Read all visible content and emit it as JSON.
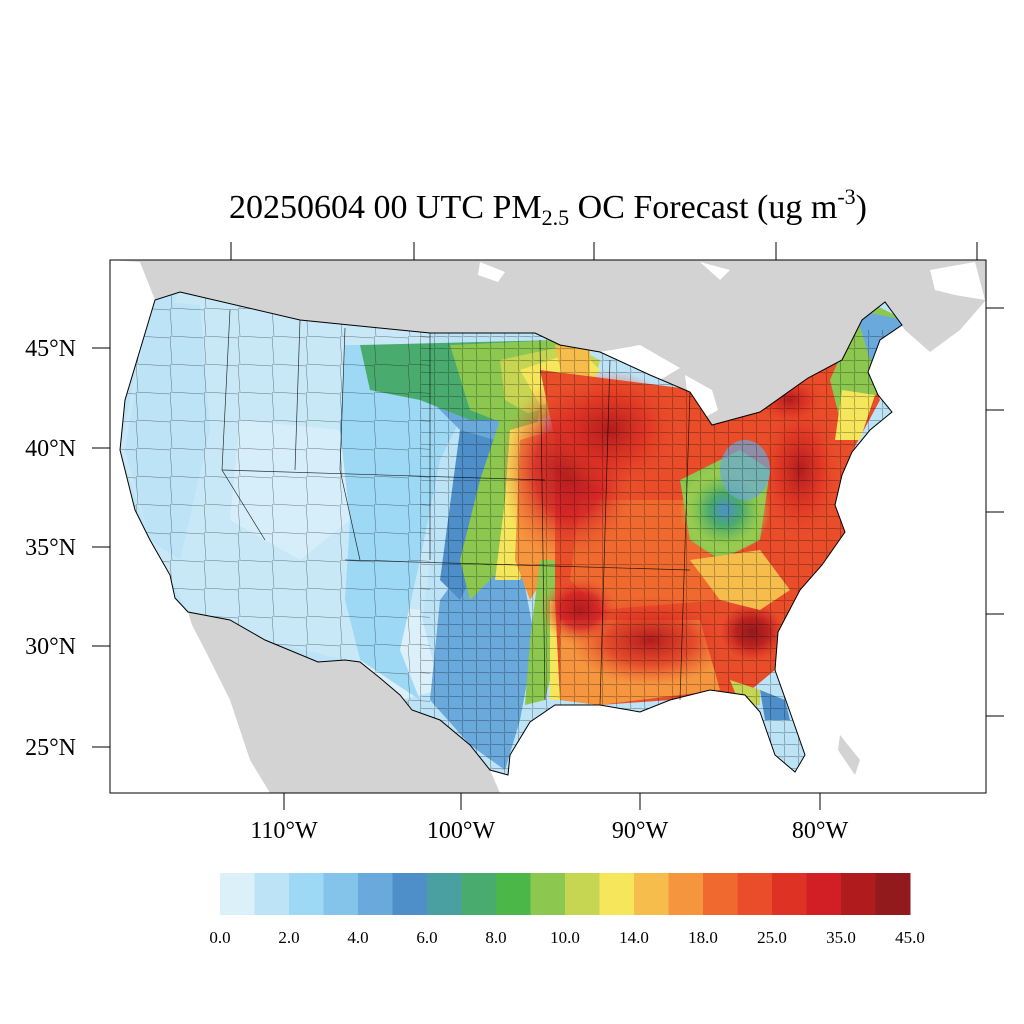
{
  "title": {
    "prefix": "20250604 00 UTC PM",
    "subscript": "2.5",
    "middle": " OC Forecast (ug m",
    "superscript": "-3",
    "suffix": ")"
  },
  "map": {
    "projection": "Lambert conformal (CONUS)",
    "ocean_color": "#ffffff",
    "land_outside_color": "#d3d3d3",
    "lat_labels": [
      "45°N",
      "40°N",
      "35°N",
      "30°N",
      "25°N"
    ],
    "lon_labels": [
      "110°W",
      "100°W",
      "90°W",
      "80°W"
    ]
  },
  "colorbar": {
    "colors": [
      "#dcf0fa",
      "#bde3f7",
      "#9dd8f4",
      "#84c3ea",
      "#6aa9dc",
      "#4e8fca",
      "#4aa0a0",
      "#4aab6e",
      "#4cb749",
      "#8cc850",
      "#c6d653",
      "#f6e65c",
      "#f6bd4c",
      "#f5963f",
      "#f06a30",
      "#e94d2a",
      "#de3324",
      "#d21f26",
      "#b01c1e",
      "#921a1c"
    ],
    "labels": [
      "0.0",
      "2.0",
      "4.0",
      "6.0",
      "8.0",
      "10.0",
      "14.0",
      "18.0",
      "25.0",
      "35.0",
      "45.0"
    ]
  }
}
